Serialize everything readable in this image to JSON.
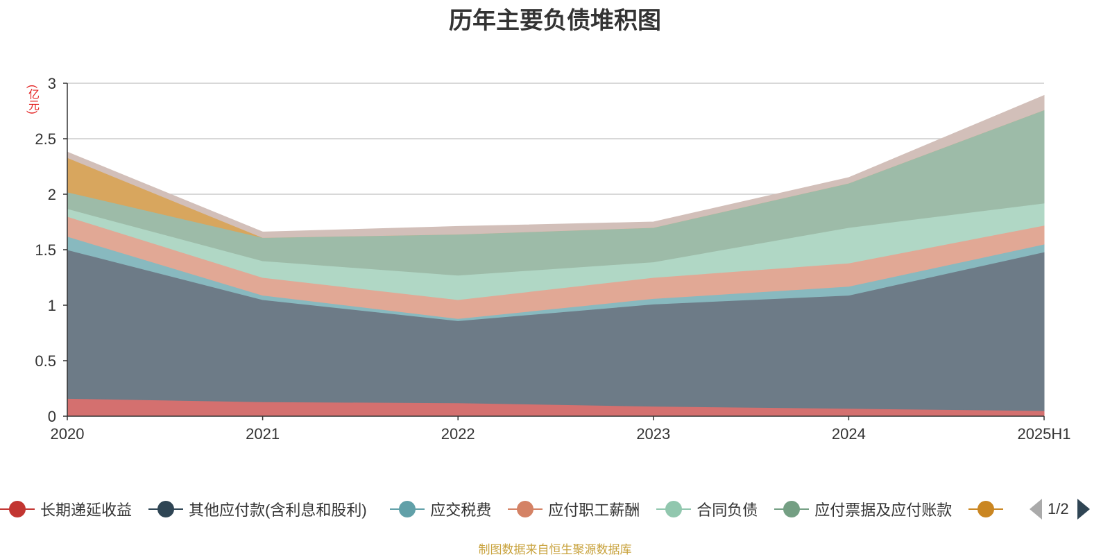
{
  "title": "历年主要负债堆积图",
  "unit_label": "(亿元)",
  "source_note": "制图数据来自恒生聚源数据库",
  "pager": {
    "text": "1/2"
  },
  "chart_data": {
    "type": "area",
    "stacked": true,
    "categories": [
      "2020",
      "2021",
      "2022",
      "2023",
      "2024",
      "2025H1"
    ],
    "ylim": [
      0,
      3
    ],
    "yticks": [
      0,
      0.5,
      1,
      1.5,
      2,
      2.5,
      3
    ],
    "ytick_labels": [
      "0",
      "0.5",
      "1",
      "1.5",
      "2",
      "2.5",
      "3"
    ],
    "grid": true,
    "series": [
      {
        "name": "长期递延收益",
        "color": "#c23531",
        "area_color": "#d4706f",
        "values": [
          0.16,
          0.13,
          0.12,
          0.09,
          0.07,
          0.05
        ],
        "in_legend": true
      },
      {
        "name": "其他应付款(含利息和股利)",
        "color": "#2f4554",
        "area_color": "#6d7b87",
        "values": [
          1.34,
          0.92,
          0.74,
          0.92,
          1.02,
          1.43
        ],
        "in_legend": true
      },
      {
        "name": "应交税费",
        "color": "#61a0a8",
        "area_color": "#88b9bf",
        "values": [
          0.12,
          0.04,
          0.02,
          0.05,
          0.08,
          0.07
        ],
        "in_legend": true
      },
      {
        "name": "应付职工薪酬",
        "color": "#d48265",
        "area_color": "#e1a895",
        "values": [
          0.18,
          0.16,
          0.17,
          0.19,
          0.21,
          0.17
        ],
        "in_legend": true
      },
      {
        "name": "合同负债",
        "color": "#91c7ae",
        "area_color": "#b0d7c5",
        "values": [
          0.07,
          0.15,
          0.22,
          0.14,
          0.32,
          0.2
        ],
        "in_legend": true
      },
      {
        "name": "应付票据及应付账款",
        "color": "#749f83",
        "area_color": "#9dbba8",
        "values": [
          0.15,
          0.21,
          0.37,
          0.31,
          0.4,
          0.84
        ],
        "in_legend": true
      },
      {
        "name": "",
        "color": "#ca8622",
        "area_color": "#d8a65e",
        "values": [
          0.31,
          0.0,
          0.0,
          0.0,
          0.0,
          0.0
        ],
        "in_legend": true
      },
      {
        "name": "",
        "color": "#bda29a",
        "area_color": "#d2bfb9",
        "values": [
          0.05,
          0.05,
          0.07,
          0.05,
          0.05,
          0.13
        ],
        "in_legend": false
      }
    ]
  }
}
